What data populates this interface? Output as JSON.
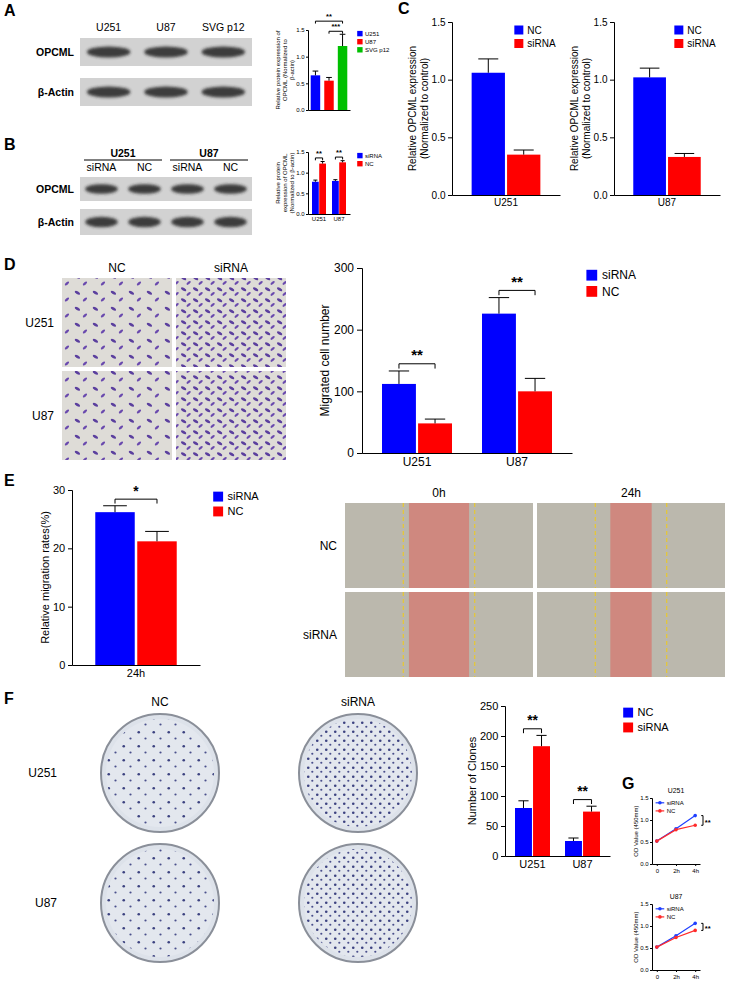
{
  "panels": [
    "A",
    "B",
    "C",
    "D",
    "E",
    "F",
    "G"
  ],
  "images": [
    {
      "columns": [
        "U251",
        "U87",
        "SVG p12"
      ],
      "rows": [
        "OPCML",
        "β-Actin"
      ]
    },
    {
      "groups": [
        "U251",
        "U87"
      ],
      "columns": [
        "siRNA",
        "NC",
        "siRNA",
        "NC"
      ],
      "rows": [
        "OPCML",
        "β-Actin"
      ]
    },
    {
      "columns": [
        "NC",
        "siRNA"
      ],
      "rows": [
        "U251",
        "U87"
      ]
    },
    {
      "columns": [
        "0h",
        "24h"
      ],
      "rows": [
        "NC",
        "siRNA"
      ]
    },
    {
      "columns": [
        "NC",
        "siRNA"
      ],
      "rows": [
        "U251",
        "U87"
      ]
    }
  ],
  "chart_data": [
    {
      "type": "bar",
      "categories": [
        "U251",
        "U87",
        "SVG p12"
      ],
      "values": [
        0.65,
        0.55,
        1.2
      ],
      "errors": [
        0.08,
        0.06,
        0.22
      ],
      "colors": [
        "#0000ff",
        "#ff0000",
        "#00c000"
      ],
      "ylabel": "Relative protein expression of OPCML (Normalized to β-actin)",
      "ylim": [
        0,
        1.5
      ],
      "yticks": [
        {
          "value": 0,
          "label": "0.0"
        },
        {
          "value": 0.5,
          "label": "0.5"
        },
        {
          "value": 1,
          "label": "1.0"
        },
        {
          "value": 1.5,
          "label": "1.5"
        }
      ],
      "legend": "right",
      "tick_labels": "y",
      "annotations": [
        "**",
        "***"
      ]
    },
    {
      "type": "bar",
      "categories": [
        "U251",
        "U87"
      ],
      "series": [
        {
          "name": "siRNA",
          "color": "#0000ff",
          "values": [
            0.78,
            0.8
          ],
          "errors": [
            0.04,
            0.03
          ]
        },
        {
          "name": "NC",
          "color": "#ff0000",
          "values": [
            1.22,
            1.25
          ],
          "errors": [
            0.05,
            0.04
          ]
        }
      ],
      "ylabel": "Relative protein expression of OPCML (Normalized to β-actin)",
      "ylim": [
        0,
        1.5
      ],
      "yticks": [
        {
          "value": 0,
          "label": "0.0"
        },
        {
          "value": 0.5,
          "label": "0.5"
        },
        {
          "value": 1,
          "label": "1.0"
        },
        {
          "value": 1.5,
          "label": "1.5"
        }
      ],
      "legend": "right",
      "annotations": [
        "**",
        "**"
      ]
    },
    {
      "type": "bar",
      "categories": [
        "U251"
      ],
      "series": [
        {
          "name": "NC",
          "color": "#0000ff",
          "values": [
            1.06
          ],
          "errors": [
            0.12
          ]
        },
        {
          "name": "siRNA",
          "color": "#ff0000",
          "values": [
            0.35
          ],
          "errors": [
            0.04
          ]
        }
      ],
      "ylabel": "Relative OPCML expression (Normalized to control)",
      "ylim": [
        0,
        1.5
      ],
      "yticks": [
        {
          "value": 0,
          "label": "0.0"
        },
        {
          "value": 0.5,
          "label": "0.5"
        },
        {
          "value": 1,
          "label": "1.0"
        },
        {
          "value": 1.5,
          "label": "1.5"
        }
      ],
      "legend": "upper right"
    },
    {
      "type": "bar",
      "categories": [
        "U87"
      ],
      "series": [
        {
          "name": "NC",
          "color": "#0000ff",
          "values": [
            1.02
          ],
          "errors": [
            0.08
          ]
        },
        {
          "name": "siRNA",
          "color": "#ff0000",
          "values": [
            0.33
          ],
          "errors": [
            0.03
          ]
        }
      ],
      "ylabel": "Relative OPCML expression (Normalized to control)",
      "ylim": [
        0,
        1.5
      ],
      "yticks": [
        {
          "value": 0,
          "label": "0.0"
        },
        {
          "value": 0.5,
          "label": "0.5"
        },
        {
          "value": 1,
          "label": "1.0"
        },
        {
          "value": 1.5,
          "label": "1.5"
        }
      ],
      "legend": "upper right"
    },
    {
      "type": "bar",
      "categories": [
        "U251",
        "U87"
      ],
      "series": [
        {
          "name": "siRNA",
          "color": "#0000ff",
          "values": [
            112,
            226
          ],
          "errors": [
            21,
            26
          ]
        },
        {
          "name": "NC",
          "color": "#ff0000",
          "values": [
            48,
            100
          ],
          "errors": [
            7,
            21
          ]
        }
      ],
      "ylabel": "Migrated cell number",
      "ylim": [
        0,
        300
      ],
      "yticks": [
        0,
        100,
        200,
        300
      ],
      "legend": "right",
      "annotations": [
        "**",
        "**"
      ]
    },
    {
      "type": "bar",
      "categories": [
        "24h"
      ],
      "series": [
        {
          "name": "siRNA",
          "color": "#0000ff",
          "values": [
            26.2
          ],
          "errors": [
            1.1
          ]
        },
        {
          "name": "NC",
          "color": "#ff0000",
          "values": [
            21.2
          ],
          "errors": [
            1.7
          ]
        }
      ],
      "ylabel": "Relative migration rates(%)",
      "ylim": [
        0,
        30
      ],
      "yticks": [
        0,
        10,
        20,
        30
      ],
      "legend": "right",
      "annotations": [
        "*"
      ]
    },
    {
      "type": "bar",
      "categories": [
        "U251",
        "U87"
      ],
      "series": [
        {
          "name": "NC",
          "color": "#0000ff",
          "values": [
            80,
            25
          ],
          "errors": [
            12,
            5
          ]
        },
        {
          "name": "siRNA",
          "color": "#ff0000",
          "values": [
            183,
            74
          ],
          "errors": [
            18,
            9
          ]
        }
      ],
      "ylabel": "Number of Clones",
      "ylim": [
        0,
        250
      ],
      "yticks": [
        0,
        50,
        100,
        150,
        200,
        250
      ],
      "legend": "right",
      "annotations": [
        "**",
        "**"
      ]
    },
    {
      "type": "line",
      "title": "U251",
      "categories": [
        "0",
        "2h",
        "4h"
      ],
      "series": [
        {
          "name": "siRNA",
          "color": "#1f3fff",
          "marker": "circle",
          "values": [
            0.52,
            0.8,
            1.1
          ]
        },
        {
          "name": "NC",
          "color": "#ff2a2a",
          "marker": "circle",
          "values": [
            0.52,
            0.78,
            0.88
          ]
        }
      ],
      "ylabel": "OD Value (450mm)",
      "ylim": [
        0,
        1.5
      ],
      "yticks": [
        {
          "value": 0,
          "label": "0.0"
        },
        {
          "value": 0.5,
          "label": "0.5"
        },
        {
          "value": 1,
          "label": "1.0"
        },
        {
          "value": 1.5,
          "label": "1.5"
        }
      ],
      "legend": "upper left",
      "annotations": [
        "**"
      ]
    },
    {
      "type": "line",
      "title": "U87",
      "categories": [
        "0",
        "2h",
        "4h"
      ],
      "series": [
        {
          "name": "siRNA",
          "color": "#1f3fff",
          "marker": "circle",
          "values": [
            0.52,
            0.78,
            1.06
          ]
        },
        {
          "name": "NC",
          "color": "#ff2a2a",
          "marker": "circle",
          "values": [
            0.52,
            0.74,
            0.9
          ]
        }
      ],
      "ylabel": "OD Value (450mm)",
      "ylim": [
        0,
        1.5
      ],
      "yticks": [
        {
          "value": 0,
          "label": "0.0"
        },
        {
          "value": 0.5,
          "label": "0.5"
        },
        {
          "value": 1,
          "label": "1.0"
        },
        {
          "value": 1.5,
          "label": "1.5"
        }
      ],
      "legend": "upper left",
      "annotations": [
        "**"
      ]
    }
  ]
}
